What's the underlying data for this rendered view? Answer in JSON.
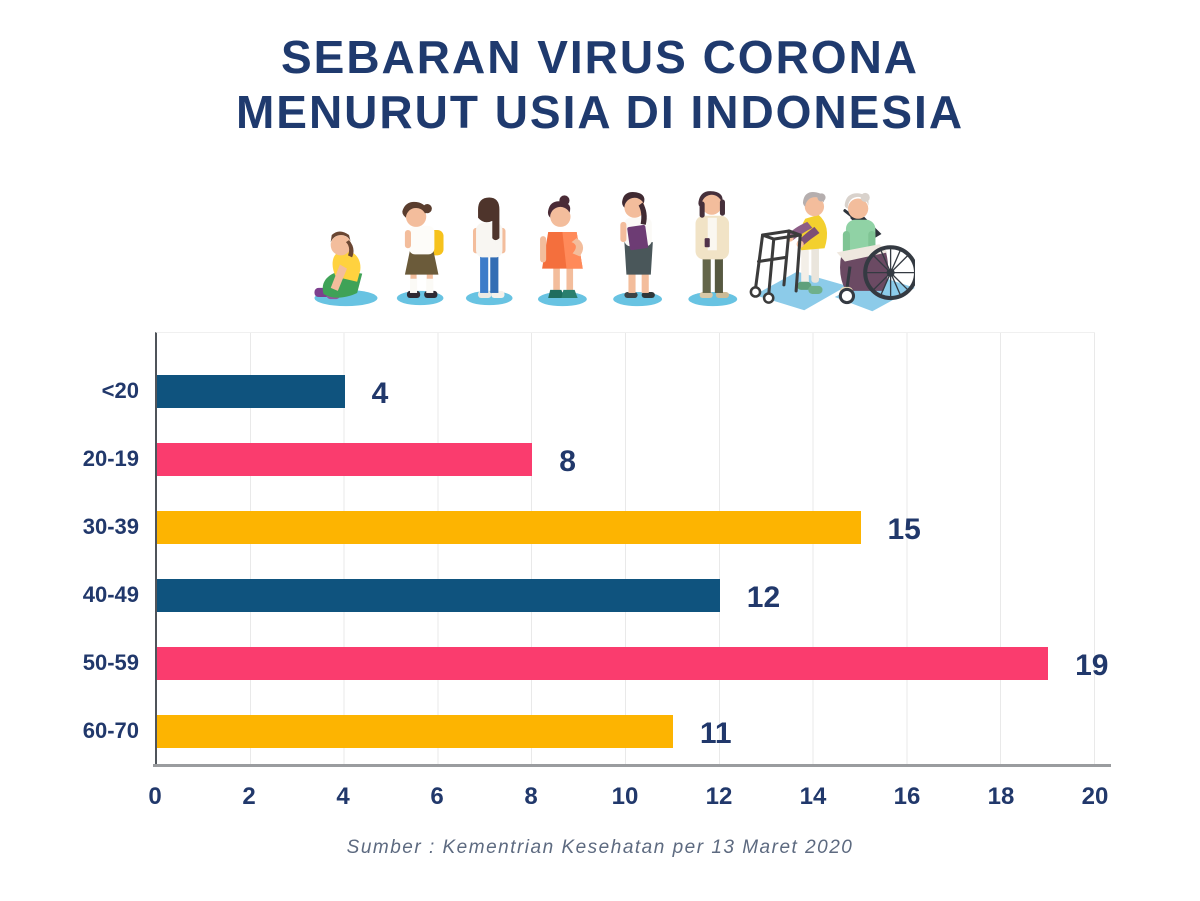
{
  "title": {
    "line1": "SEBARAN VIRUS CORONA",
    "line2": "MENURUT USIA DI INDONESIA"
  },
  "illustration": {
    "figures": [
      "child-sitting",
      "school-girl-with-backpack",
      "teen-girl-in-jeans",
      "young-woman-orange-dress",
      "woman-with-folder",
      "woman-in-cardigan",
      "elderly-woman-with-walker",
      "elderly-woman-in-wheelchair"
    ]
  },
  "chart_data": {
    "type": "bar",
    "orientation": "horizontal",
    "title": "SEBARAN VIRUS CORONA MENURUT USIA DI INDONESIA",
    "categories": [
      "<20",
      "20-19",
      "30-39",
      "40-49",
      "50-59",
      "60-70"
    ],
    "values": [
      4,
      8,
      15,
      12,
      19,
      11
    ],
    "bar_colors": [
      "#0F537E",
      "#FA3C6E",
      "#FDB401",
      "#0F537E",
      "#FA3C6E",
      "#FDB401"
    ],
    "xlim": [
      0,
      20
    ],
    "xticks": [
      0,
      2,
      4,
      6,
      8,
      10,
      12,
      14,
      16,
      18,
      20
    ],
    "xlabel": "",
    "ylabel": "",
    "grid": "vertical-light",
    "legend": "none",
    "value_label_color": "#21386B"
  },
  "colors": {
    "navy": "#0F537E",
    "pink": "#FA3C6E",
    "amber": "#FDB401",
    "text_navy": "#21386B",
    "grid": "#E9E9E9",
    "axis": "#9A9C9F",
    "shadow_blue": "#6FC3E2"
  },
  "footer": {
    "source": "Sumber : Kementrian Kesehatan per 13 Maret 2020"
  }
}
